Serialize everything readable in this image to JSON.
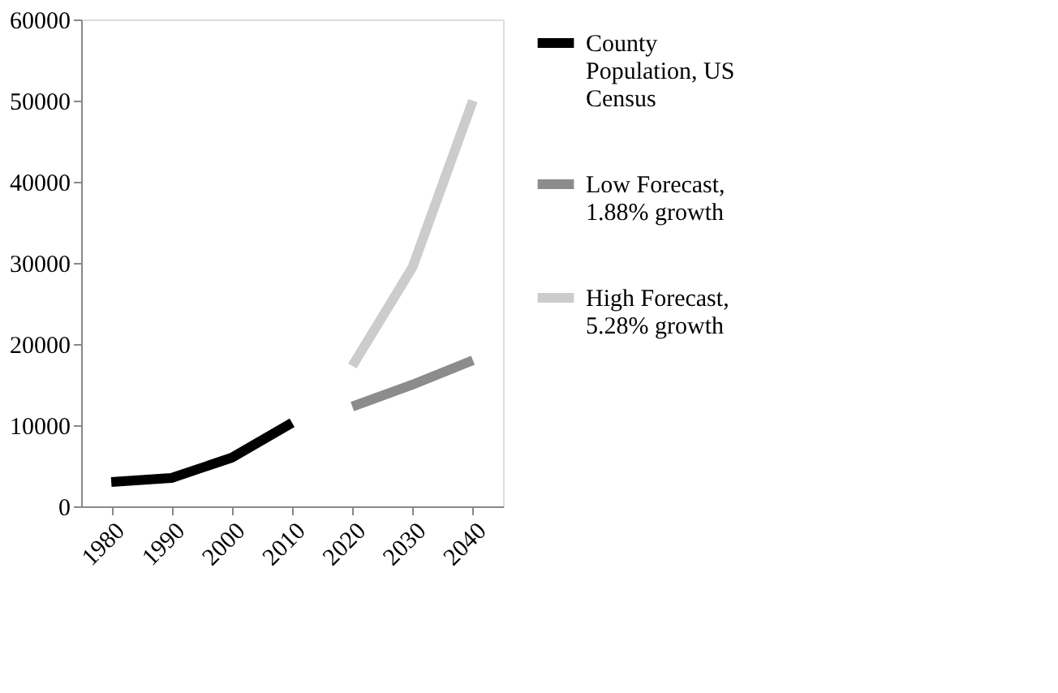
{
  "chart_data": {
    "type": "line",
    "categories": [
      "1980",
      "1990",
      "2000",
      "2010",
      "2020",
      "2030",
      "2040"
    ],
    "series": [
      {
        "name": "County Population, US Census",
        "color": "#000000",
        "values": [
          3000,
          3500,
          6000,
          10300,
          null,
          null,
          null
        ]
      },
      {
        "name": "Low Forecast, 1.88% growth",
        "color": "#8c8c8c",
        "values": [
          null,
          null,
          null,
          null,
          12300,
          15000,
          18000
        ]
      },
      {
        "name": "High Forecast, 5.28% growth",
        "color": "#cccccc",
        "values": [
          null,
          null,
          null,
          null,
          17300,
          29500,
          50000
        ]
      }
    ],
    "ylim": [
      0,
      60000
    ],
    "yticks": [
      0,
      10000,
      20000,
      30000,
      40000,
      50000,
      60000
    ],
    "grid": false,
    "legend": "right",
    "marker": "none",
    "line_style": "solid"
  }
}
